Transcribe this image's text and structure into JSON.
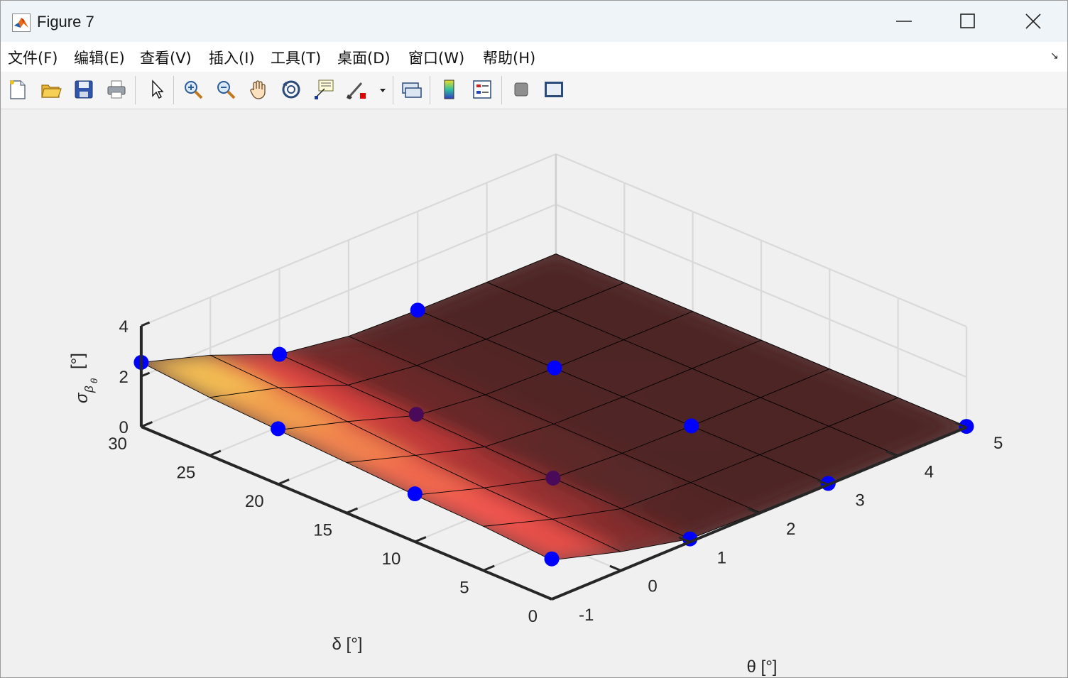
{
  "window": {
    "title": "Figure 7"
  },
  "menu": [
    {
      "label": "文件(F)"
    },
    {
      "label": "编辑(E)"
    },
    {
      "label": "查看(V)"
    },
    {
      "label": "插入(I)"
    },
    {
      "label": "工具(T)"
    },
    {
      "label": "桌面(D)"
    },
    {
      "label": "窗口(W)"
    },
    {
      "label": "帮助(H)"
    }
  ],
  "toolbar": [
    {
      "icon": "new-figure-icon"
    },
    {
      "icon": "open-file-icon"
    },
    {
      "icon": "save-icon"
    },
    {
      "icon": "print-icon"
    },
    {
      "icon": "edit-plot-arrow-icon"
    },
    {
      "icon": "zoom-in-icon"
    },
    {
      "icon": "zoom-out-icon"
    },
    {
      "icon": "pan-hand-icon"
    },
    {
      "icon": "rotate-3d-icon"
    },
    {
      "icon": "data-cursor-icon"
    },
    {
      "icon": "brush-icon"
    },
    {
      "icon": "link-plot-icon"
    },
    {
      "icon": "colorbar-icon"
    },
    {
      "icon": "legend-icon"
    },
    {
      "icon": "hide-plot-tools-icon"
    },
    {
      "icon": "show-plot-tools-icon"
    }
  ],
  "chart_data": {
    "type": "surface3d",
    "x_key": "theta",
    "y_key": "delta",
    "xlabel": "θ  [°]",
    "ylabel": "δ  [°]",
    "zlabel": "σ β θ  [°]",
    "zlabel_parts": {
      "sigma": "σ",
      "beta": "β",
      "theta": "θ",
      "unit": "[°]"
    },
    "xlim": [
      -1,
      5
    ],
    "ylim": [
      0,
      30
    ],
    "zlim": [
      0,
      4
    ],
    "xticks": [
      "-1",
      "0",
      "1",
      "2",
      "3",
      "4",
      "5"
    ],
    "yticks": [
      "0",
      "5",
      "10",
      "15",
      "20",
      "25",
      "30"
    ],
    "zticks": [
      "0",
      "2",
      "4"
    ],
    "grid": true,
    "colormap": "hot",
    "theta_grid": [
      -1,
      0,
      1,
      2,
      3,
      4,
      5
    ],
    "delta_grid": [
      0,
      5,
      10,
      15,
      20,
      25,
      30
    ],
    "z": [
      [
        1.55,
        0.75,
        0.12,
        0.05,
        0.04,
        0.04,
        0.04
      ],
      [
        1.75,
        0.9,
        0.18,
        0.08,
        0.05,
        0.04,
        0.04
      ],
      [
        1.85,
        1.0,
        0.25,
        0.1,
        0.05,
        0.04,
        0.04
      ],
      [
        2.0,
        1.15,
        0.35,
        0.12,
        0.06,
        0.05,
        0.04
      ],
      [
        2.15,
        1.35,
        0.45,
        0.14,
        0.06,
        0.05,
        0.04
      ],
      [
        2.3,
        1.55,
        0.52,
        0.16,
        0.07,
        0.05,
        0.04
      ],
      [
        2.55,
        1.7,
        0.6,
        0.18,
        0.08,
        0.05,
        0.04
      ]
    ],
    "points": [
      {
        "theta": -1,
        "delta": 0,
        "z": 1.6
      },
      {
        "theta": 1,
        "delta": 0,
        "z": 0.12
      },
      {
        "theta": 3,
        "delta": 0,
        "z": 0.05
      },
      {
        "theta": 5,
        "delta": 0,
        "z": 0.04
      },
      {
        "theta": -1,
        "delta": 10,
        "z": 1.9
      },
      {
        "theta": 1,
        "delta": 10,
        "z": 0.25
      },
      {
        "theta": 3,
        "delta": 10,
        "z": 0.05
      },
      {
        "theta": -1,
        "delta": 20,
        "z": 2.2
      },
      {
        "theta": 1,
        "delta": 20,
        "z": 0.5
      },
      {
        "theta": 3,
        "delta": 20,
        "z": 0.07
      },
      {
        "theta": -1,
        "delta": 30,
        "z": 2.55
      },
      {
        "theta": 1,
        "delta": 30,
        "z": 0.6
      },
      {
        "theta": 3,
        "delta": 30,
        "z": 0.08
      }
    ],
    "point_color": "#0000ff"
  }
}
